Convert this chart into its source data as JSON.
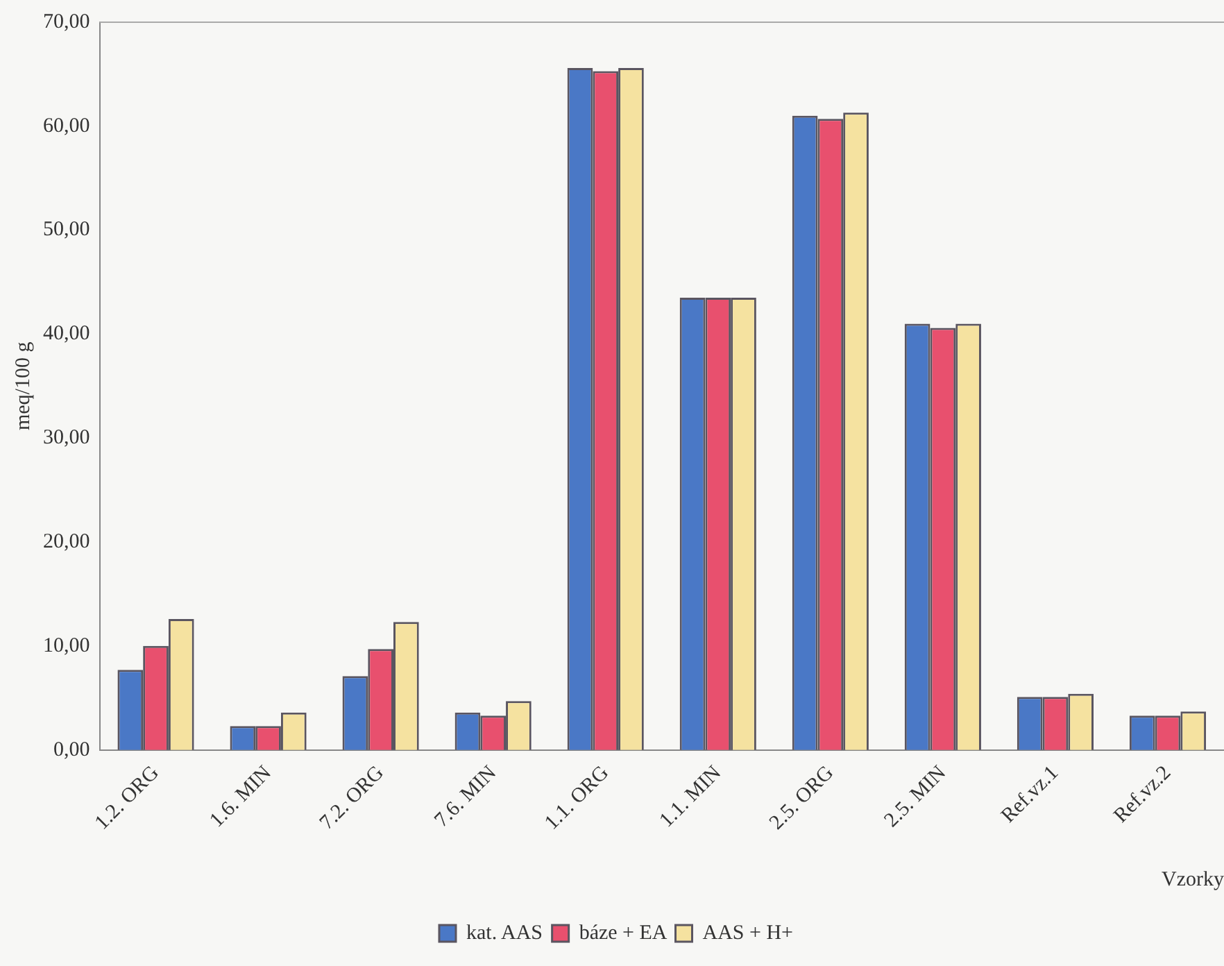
{
  "chart_data": {
    "type": "bar",
    "xlabel": "Vzorky",
    "ylabel": "meq/100 g",
    "categories": [
      "1.2. ORG",
      "1.6. MIN",
      "7.2. ORG",
      "7.6. MIN",
      "1.1. ORG",
      "1.1. MIN",
      "2.5. ORG",
      "2.5. MIN",
      "Ref.vz.1",
      "Ref.vz.2"
    ],
    "series": [
      {
        "name": "kat. AAS",
        "color": "#4a78c6",
        "values": [
          7.7,
          2.3,
          7.1,
          3.6,
          65.6,
          43.5,
          61.0,
          41.0,
          5.1,
          3.3
        ]
      },
      {
        "name": "báze + EA",
        "color": "#e8506e",
        "values": [
          10.0,
          2.3,
          9.7,
          3.3,
          65.3,
          43.5,
          60.7,
          40.6,
          5.1,
          3.3
        ]
      },
      {
        "name": "AAS + H+",
        "color": "#f5e2a0",
        "values": [
          12.6,
          3.6,
          12.3,
          4.7,
          65.6,
          43.5,
          61.3,
          41.0,
          5.4,
          3.7
        ]
      }
    ],
    "ylim": [
      0,
      70
    ],
    "yticks": [
      {
        "value": 0,
        "label": "0,00"
      },
      {
        "value": 10,
        "label": "10,00"
      },
      {
        "value": 20,
        "label": "20,00"
      },
      {
        "value": 30,
        "label": "30,00"
      },
      {
        "value": 40,
        "label": "40,00"
      },
      {
        "value": 50,
        "label": "50,00"
      },
      {
        "value": 60,
        "label": "60,00"
      },
      {
        "value": 70,
        "label": "70,00"
      }
    ],
    "grid": false,
    "legend": "bottom"
  }
}
